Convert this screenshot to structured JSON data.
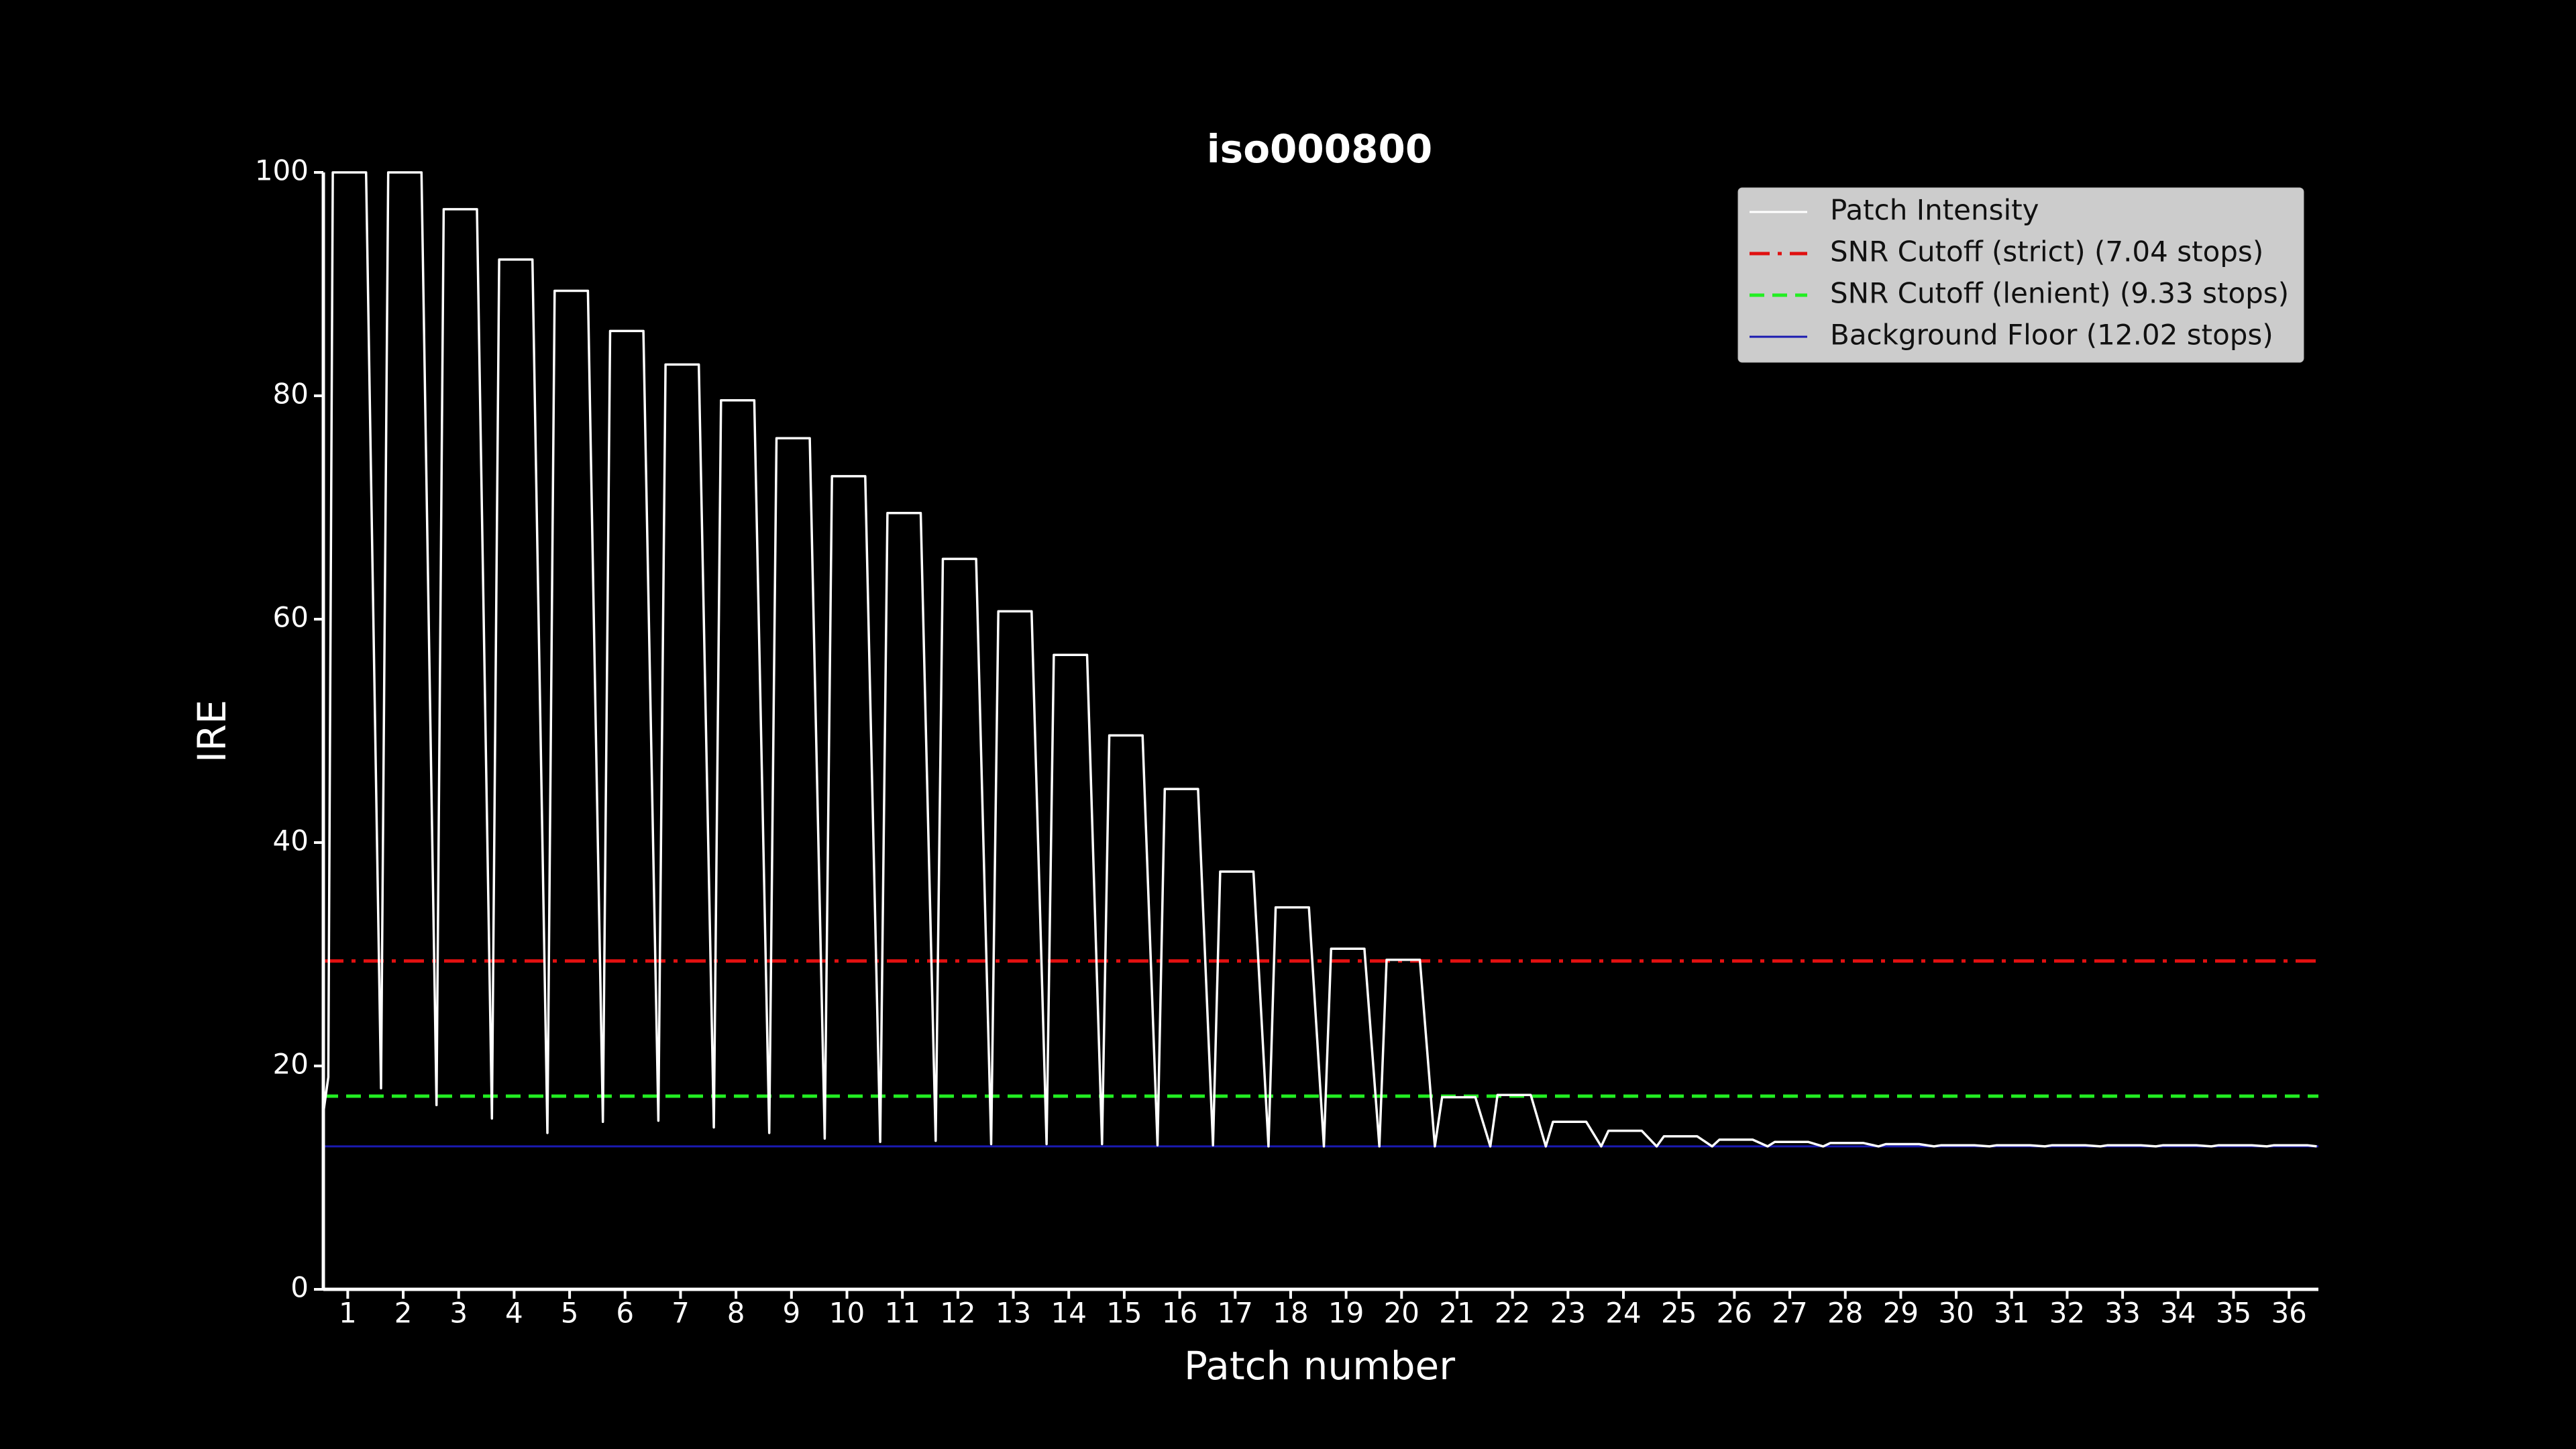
{
  "chart_data": {
    "type": "line",
    "title": "iso000800",
    "x_label": "Patch number",
    "y_label": "IRE",
    "xlim": [
      0.56,
      36.53
    ],
    "ylim": [
      0,
      100
    ],
    "xticks": [
      1,
      2,
      3,
      4,
      5,
      6,
      7,
      8,
      9,
      10,
      11,
      12,
      13,
      14,
      15,
      16,
      17,
      18,
      19,
      20,
      21,
      22,
      23,
      24,
      25,
      26,
      27,
      28,
      29,
      30,
      31,
      32,
      33,
      34,
      35,
      36
    ],
    "yticks": [
      0,
      20,
      40,
      60,
      80,
      100
    ],
    "legend": "upper right",
    "series": [
      {
        "name": "Patch Intensity",
        "color": "#ffffff",
        "x": [
          0.56,
          0.65,
          0.73,
          1.33,
          1.6,
          1.73,
          2.33,
          2.6,
          2.73,
          3.33,
          3.6,
          3.73,
          4.33,
          4.6,
          4.73,
          5.33,
          5.6,
          5.73,
          6.33,
          6.6,
          6.73,
          7.33,
          7.6,
          7.73,
          8.33,
          8.6,
          8.73,
          9.33,
          9.6,
          9.73,
          10.33,
          10.6,
          10.73,
          11.33,
          11.6,
          11.73,
          12.33,
          12.6,
          12.73,
          13.33,
          13.6,
          13.73,
          14.33,
          14.6,
          14.73,
          15.33,
          15.6,
          15.73,
          16.33,
          16.6,
          16.73,
          17.33,
          17.6,
          17.73,
          18.33,
          18.6,
          18.73,
          19.33,
          19.6,
          19.73,
          20.33,
          20.6,
          20.73,
          21.33,
          21.6,
          21.73,
          22.33,
          22.6,
          22.73,
          23.33,
          23.6,
          23.73,
          24.33,
          24.6,
          24.73,
          25.33,
          25.6,
          25.73,
          26.33,
          26.6,
          26.73,
          27.33,
          27.6,
          27.73,
          28.33,
          28.6,
          28.73,
          29.33,
          29.6,
          29.73,
          30.33,
          30.6,
          30.73,
          31.33,
          31.6,
          31.73,
          32.33,
          32.6,
          32.73,
          33.33,
          33.6,
          33.73,
          34.33,
          34.6,
          34.73,
          35.33,
          35.6,
          35.73,
          36.33,
          36.5
        ],
        "values": [
          15.8,
          19,
          100,
          100,
          18,
          100,
          100,
          16.5,
          96.7,
          96.7,
          15.3,
          92.2,
          92.2,
          14,
          89.4,
          89.4,
          15,
          85.8,
          85.8,
          15.1,
          82.8,
          82.8,
          14.5,
          79.6,
          79.6,
          14,
          76.2,
          76.2,
          13.5,
          72.8,
          72.8,
          13.2,
          69.5,
          69.5,
          13.3,
          65.4,
          65.4,
          13,
          60.7,
          60.7,
          13,
          56.8,
          56.8,
          13,
          49.6,
          49.6,
          12.9,
          44.8,
          44.8,
          12.9,
          37.4,
          37.4,
          12.8,
          34.2,
          34.2,
          12.8,
          30.5,
          30.5,
          12.8,
          29.5,
          29.5,
          12.8,
          17.2,
          17.2,
          12.8,
          17.4,
          17.4,
          12.8,
          15,
          15,
          12.8,
          14.2,
          14.2,
          12.8,
          13.7,
          13.7,
          12.8,
          13.4,
          13.4,
          12.8,
          13.2,
          13.2,
          12.8,
          13.1,
          13.1,
          12.8,
          13,
          13,
          12.8,
          12.9,
          12.9,
          12.8,
          12.9,
          12.9,
          12.8,
          12.9,
          12.9,
          12.8,
          12.9,
          12.9,
          12.8,
          12.9,
          12.9,
          12.8,
          12.9,
          12.9,
          12.8,
          12.9,
          12.9,
          12.8
        ]
      }
    ],
    "reference_lines": [
      {
        "name": "SNR Cutoff (strict) (7.04 stops)",
        "color": "#e01010",
        "value": 29.4,
        "style": "dashdot"
      },
      {
        "name": "SNR Cutoff (lenient) (9.33 stops)",
        "color": "#22ee22",
        "value": 17.3,
        "style": "dashed"
      },
      {
        "name": "Background Floor (12.02 stops)",
        "color": "#1a1ab0",
        "value": 12.8,
        "style": "solid"
      }
    ]
  }
}
